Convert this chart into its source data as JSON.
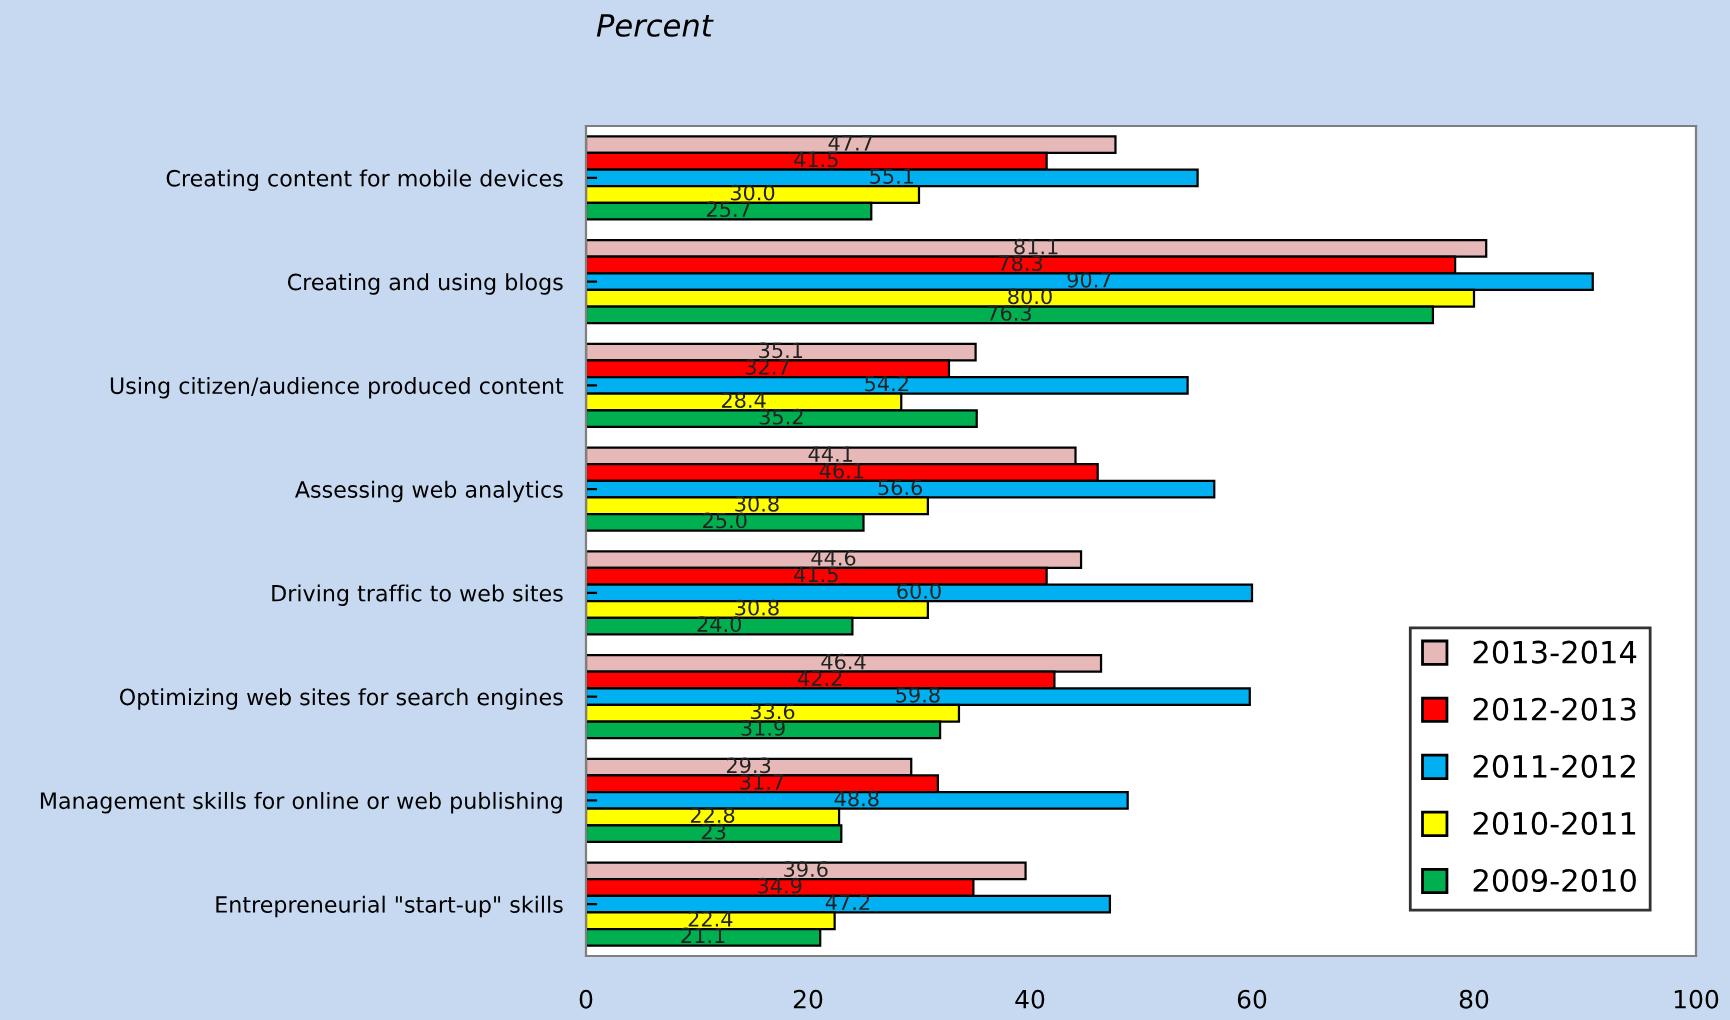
{
  "chart_data": {
    "type": "bar",
    "orientation": "horizontal",
    "xlabel": "Percent",
    "categories": [
      "Creating content for mobile devices",
      "Creating and using blogs",
      "Using citizen/audience produced content",
      "Assessing web analytics",
      "Driving traffic to web sites",
      "Optimizing web sites for search engines",
      "Management skills for online or web publishing",
      "Entrepreneurial \"start-up\" skills"
    ],
    "series": [
      {
        "name": "2013-2014",
        "color": "#e6b9b8",
        "values": [
          47.7,
          81.1,
          35.1,
          44.1,
          44.6,
          46.4,
          29.3,
          39.6
        ],
        "value_labels": [
          "47.7",
          "81.1",
          "35.1",
          "44.1",
          "44.6",
          "46.4",
          "29.3",
          "39.6"
        ]
      },
      {
        "name": "2012-2013",
        "color": "#ff0000",
        "values": [
          41.5,
          78.3,
          32.7,
          46.1,
          41.5,
          42.2,
          31.7,
          34.9
        ],
        "value_labels": [
          "41.5",
          "78.3",
          "32.7",
          "46.1",
          "41.5",
          "42.2",
          "31.7",
          "34.9"
        ]
      },
      {
        "name": "2011-2012",
        "color": "#00b0f0",
        "values": [
          55.1,
          90.7,
          54.2,
          56.6,
          60.0,
          59.8,
          48.8,
          47.2
        ],
        "value_labels": [
          "55.1",
          "90.7",
          "54.2",
          "56.6",
          "60.0",
          "59.8",
          "48.8",
          "47.2"
        ]
      },
      {
        "name": "2010-2011",
        "color": "#ffff00",
        "values": [
          30.0,
          80.0,
          28.4,
          30.8,
          30.8,
          33.6,
          22.8,
          22.4
        ],
        "value_labels": [
          "30.0",
          "80.0",
          "28.4",
          "30.8",
          "30.8",
          "33.6",
          "22.8",
          "22.4"
        ]
      },
      {
        "name": "2009-2010",
        "color": "#00b050",
        "values": [
          25.7,
          76.3,
          35.2,
          25.0,
          24.0,
          31.9,
          23,
          21.1
        ],
        "value_labels": [
          "25.7",
          "76.3",
          "35.2",
          "25.0",
          "24.0",
          "31.9",
          "23",
          "21.1"
        ]
      }
    ],
    "xlim": [
      0,
      100
    ],
    "xticks": [
      0,
      20,
      40,
      60,
      80,
      100
    ],
    "grid": false,
    "legend": "bottom right"
  }
}
